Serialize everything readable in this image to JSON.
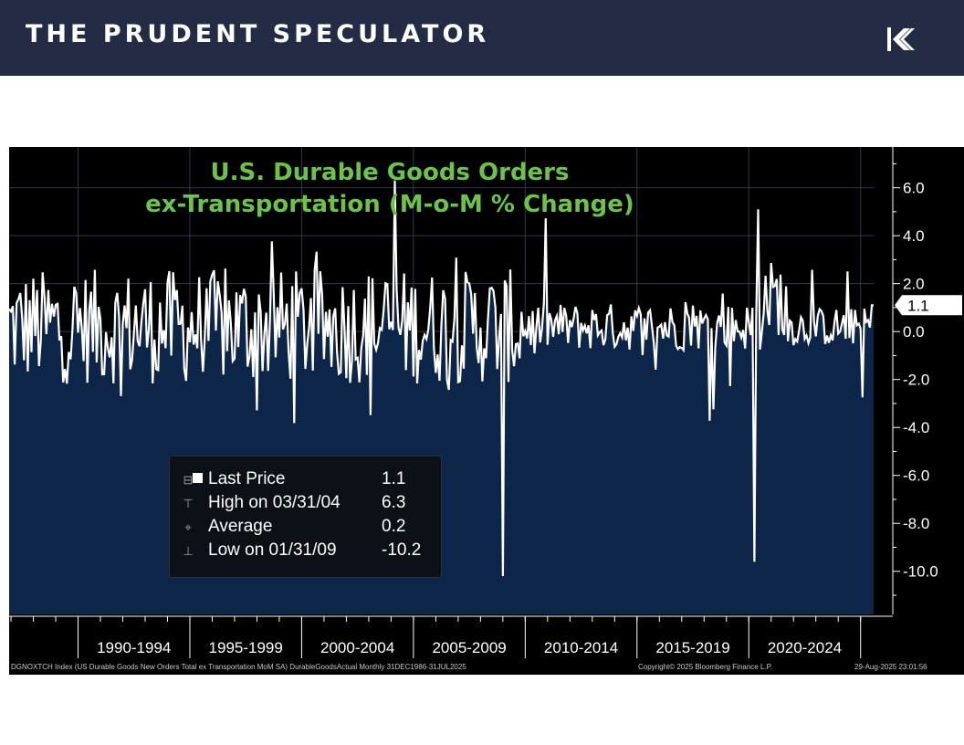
{
  "header": {
    "brand": "THE PRUDENT SPECULATOR",
    "logo_icon": "k-arrows-logo-icon",
    "background_color": "#232c44"
  },
  "chart_data": {
    "type": "area",
    "title_line1": "U.S. Durable Goods Orders",
    "title_line2": "ex-Transportation (M-o-M % Change)",
    "title_color": "#6cc24a",
    "series_color": "#ffffff",
    "fill_color": "#0d2548",
    "y_ticks": [
      6.0,
      4.0,
      2.0,
      0.0,
      -2.0,
      -4.0,
      -6.0,
      -8.0,
      -10.0
    ],
    "ylim": [
      -11.8,
      7.7
    ],
    "x_period_labels": [
      "1990-1994",
      "1995-1999",
      "2000-2004",
      "2005-2009",
      "2010-2014",
      "2015-2019",
      "2020-2024"
    ],
    "x_start": "31DEC1986",
    "x_end": "31JUL2025",
    "last_value_marker": "1.1",
    "key_points": [
      {
        "date": "2004-03-31",
        "value": 6.3
      },
      {
        "date": "2009-01-31",
        "value": -10.2
      },
      {
        "date": "2020-04-30",
        "value": -9.6
      },
      {
        "date": "2020-06-30",
        "value": 5.1
      },
      {
        "date": "2025-07-31",
        "value": 1.1
      }
    ]
  },
  "legend": {
    "rows": [
      {
        "symbol": "⊟",
        "label": "Last Price",
        "value": "1.1"
      },
      {
        "symbol": "⊤",
        "label": "High on 03/31/04",
        "value": "6.3"
      },
      {
        "symbol": "⌖",
        "label": "Average",
        "value": "0.2"
      },
      {
        "symbol": "⊥",
        "label": "Low on 01/31/09",
        "value": "-10.2"
      }
    ]
  },
  "footer": {
    "source": "DGNOXTCH Index (US Durable Goods New Orders Total ex Transportation MoM SA) DurableGoodsActual  Monthly 31DEC1986-31JUL2025",
    "copyright": "Copyright© 2025 Bloomberg Finance L.P.",
    "timestamp": "29-Aug-2025 23:01:56"
  }
}
